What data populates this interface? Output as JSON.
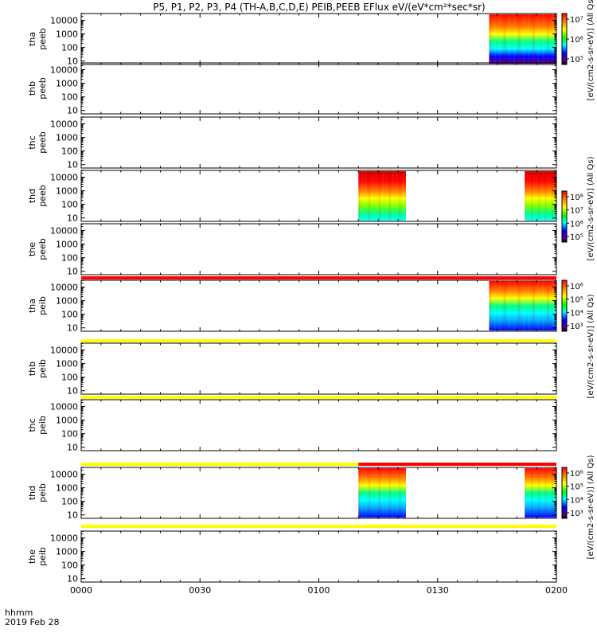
{
  "title": "P5, P1, P2, P3, P4 (TH-A,B,C,D,E) PEIB,PEEB EFlux eV/(eV*cm²*sec*sr)",
  "time_label": "hhmm",
  "date_label": "2019 Feb 28",
  "colors": {
    "spec_red": "#ff0000",
    "spec_orange": "#ff7f00",
    "spec_yellow": "#ffff00",
    "spec_green": "#00ff80",
    "spec_cyan": "#00ffff",
    "spec_blue": "#0000ff",
    "spec_purple": "#5a007f",
    "flag_red": "#ff0000",
    "flag_yellow": "#ffff00"
  },
  "chart_data": {
    "type": "heatmap",
    "x_range": [
      "0000",
      "0200"
    ],
    "x_ticks": [
      "0000",
      "0030",
      "0100",
      "0130",
      "0200"
    ],
    "y_ticks": [
      "10",
      "100",
      "1000",
      "10000"
    ],
    "y_scale": "log",
    "panels": [
      {
        "label_top": "tha",
        "label_bottom": "peeb",
        "data": [
          {
            "start": "0143",
            "end": "0200"
          }
        ]
      },
      {
        "label_top": "thb",
        "label_bottom": "peeb",
        "data": []
      },
      {
        "label_top": "thc",
        "label_bottom": "peeb",
        "data": []
      },
      {
        "label_top": "thd",
        "label_bottom": "peeb",
        "data": [
          {
            "start": "0110",
            "end": "0122"
          },
          {
            "start": "0152",
            "end": "0200"
          }
        ]
      },
      {
        "label_top": "the",
        "label_bottom": "peeb",
        "data": []
      },
      {
        "label_top": "tha",
        "label_bottom": "peib",
        "data": [
          {
            "start": "0143",
            "end": "0200"
          }
        ]
      },
      {
        "label_top": "thb",
        "label_bottom": "peib",
        "data": []
      },
      {
        "label_top": "thc",
        "label_bottom": "peib",
        "data": []
      },
      {
        "label_top": "thd",
        "label_bottom": "peib",
        "data": [
          {
            "start": "0110",
            "end": "0122"
          },
          {
            "start": "0152",
            "end": "0200"
          }
        ]
      },
      {
        "label_top": "the",
        "label_bottom": "peib",
        "data": []
      }
    ],
    "flag_bars": [
      {
        "segments": [
          {
            "start": "0000",
            "end": "0200",
            "color": "red"
          }
        ]
      },
      {
        "segments": [
          {
            "start": "0000",
            "end": "0200",
            "color": "yellow"
          }
        ]
      },
      {
        "segments": [
          {
            "start": "0000",
            "end": "0200",
            "color": "yellow"
          }
        ]
      },
      {
        "segments": [
          {
            "start": "0000",
            "end": "0110",
            "color": "yellow"
          },
          {
            "start": "0110",
            "end": "0200",
            "color": "red"
          }
        ]
      },
      {
        "segments": [
          {
            "start": "0000",
            "end": "0200",
            "color": "yellow"
          }
        ]
      }
    ],
    "colorbars": [
      {
        "ticks": [
          "10⁵",
          "10⁶",
          "10⁷"
        ],
        "axis_label": "[eV/(cm2-s-sr-eV)] (All Qs)"
      },
      {
        "ticks": [
          "10⁵",
          "10⁶",
          "10⁷",
          "10⁸"
        ],
        "axis_label": "[eV/(cm2-s-sr-eV)] (All Qs)"
      },
      {
        "ticks": [
          "10³",
          "10⁴",
          "10⁵",
          "10⁶"
        ],
        "axis_label": "[eV/(cm2-s-sr-eV)] (All Qs)"
      },
      {
        "ticks": [
          "10³",
          "10⁴",
          "10⁵",
          "10⁶"
        ],
        "axis_label": "[eV/(cm2-s-sr-eV)] (All Qs)"
      }
    ]
  }
}
